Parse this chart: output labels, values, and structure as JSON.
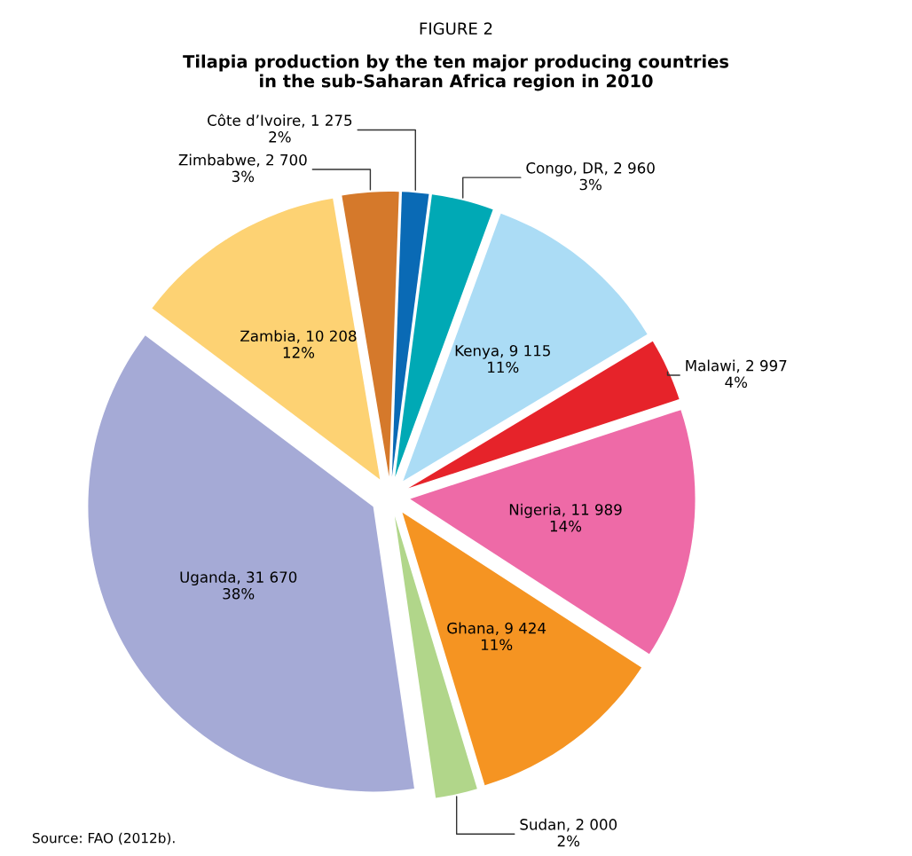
{
  "chart_data": {
    "type": "pie",
    "title": "FIGURE 2",
    "subtitle": "Tilapia production by the ten major producing countries\nin the sub-Saharan Africa region in 2010",
    "categories": [
      "Côte d’Ivoire",
      "Congo, DR",
      "Kenya",
      "Malawi",
      "Nigeria",
      "Ghana",
      "Sudan",
      "Uganda",
      "Zambia",
      "Zimbabwe"
    ],
    "values": [
      1275,
      2960,
      9115,
      2997,
      11989,
      9424,
      2000,
      31670,
      10208,
      2700
    ],
    "value_labels": [
      "1 275\n2%",
      "2 960\n3%",
      "9 115\n11%",
      "2 997\n4%",
      "11 989\n14%",
      "9 424\n11%",
      "2 000\n2%",
      "31 670\n38%",
      "10 208\n12%",
      "2 700\n3%"
    ],
    "colors": [
      "#0a6ab5",
      "#00a9b5",
      "#abdcf5",
      "#e6232a",
      "#ee6aa7",
      "#f59422",
      "#b1d68a",
      "#a5aad6",
      "#fdd273",
      "#d5792b"
    ],
    "annotations": [
      "Source: FAO (2012b)."
    ]
  }
}
